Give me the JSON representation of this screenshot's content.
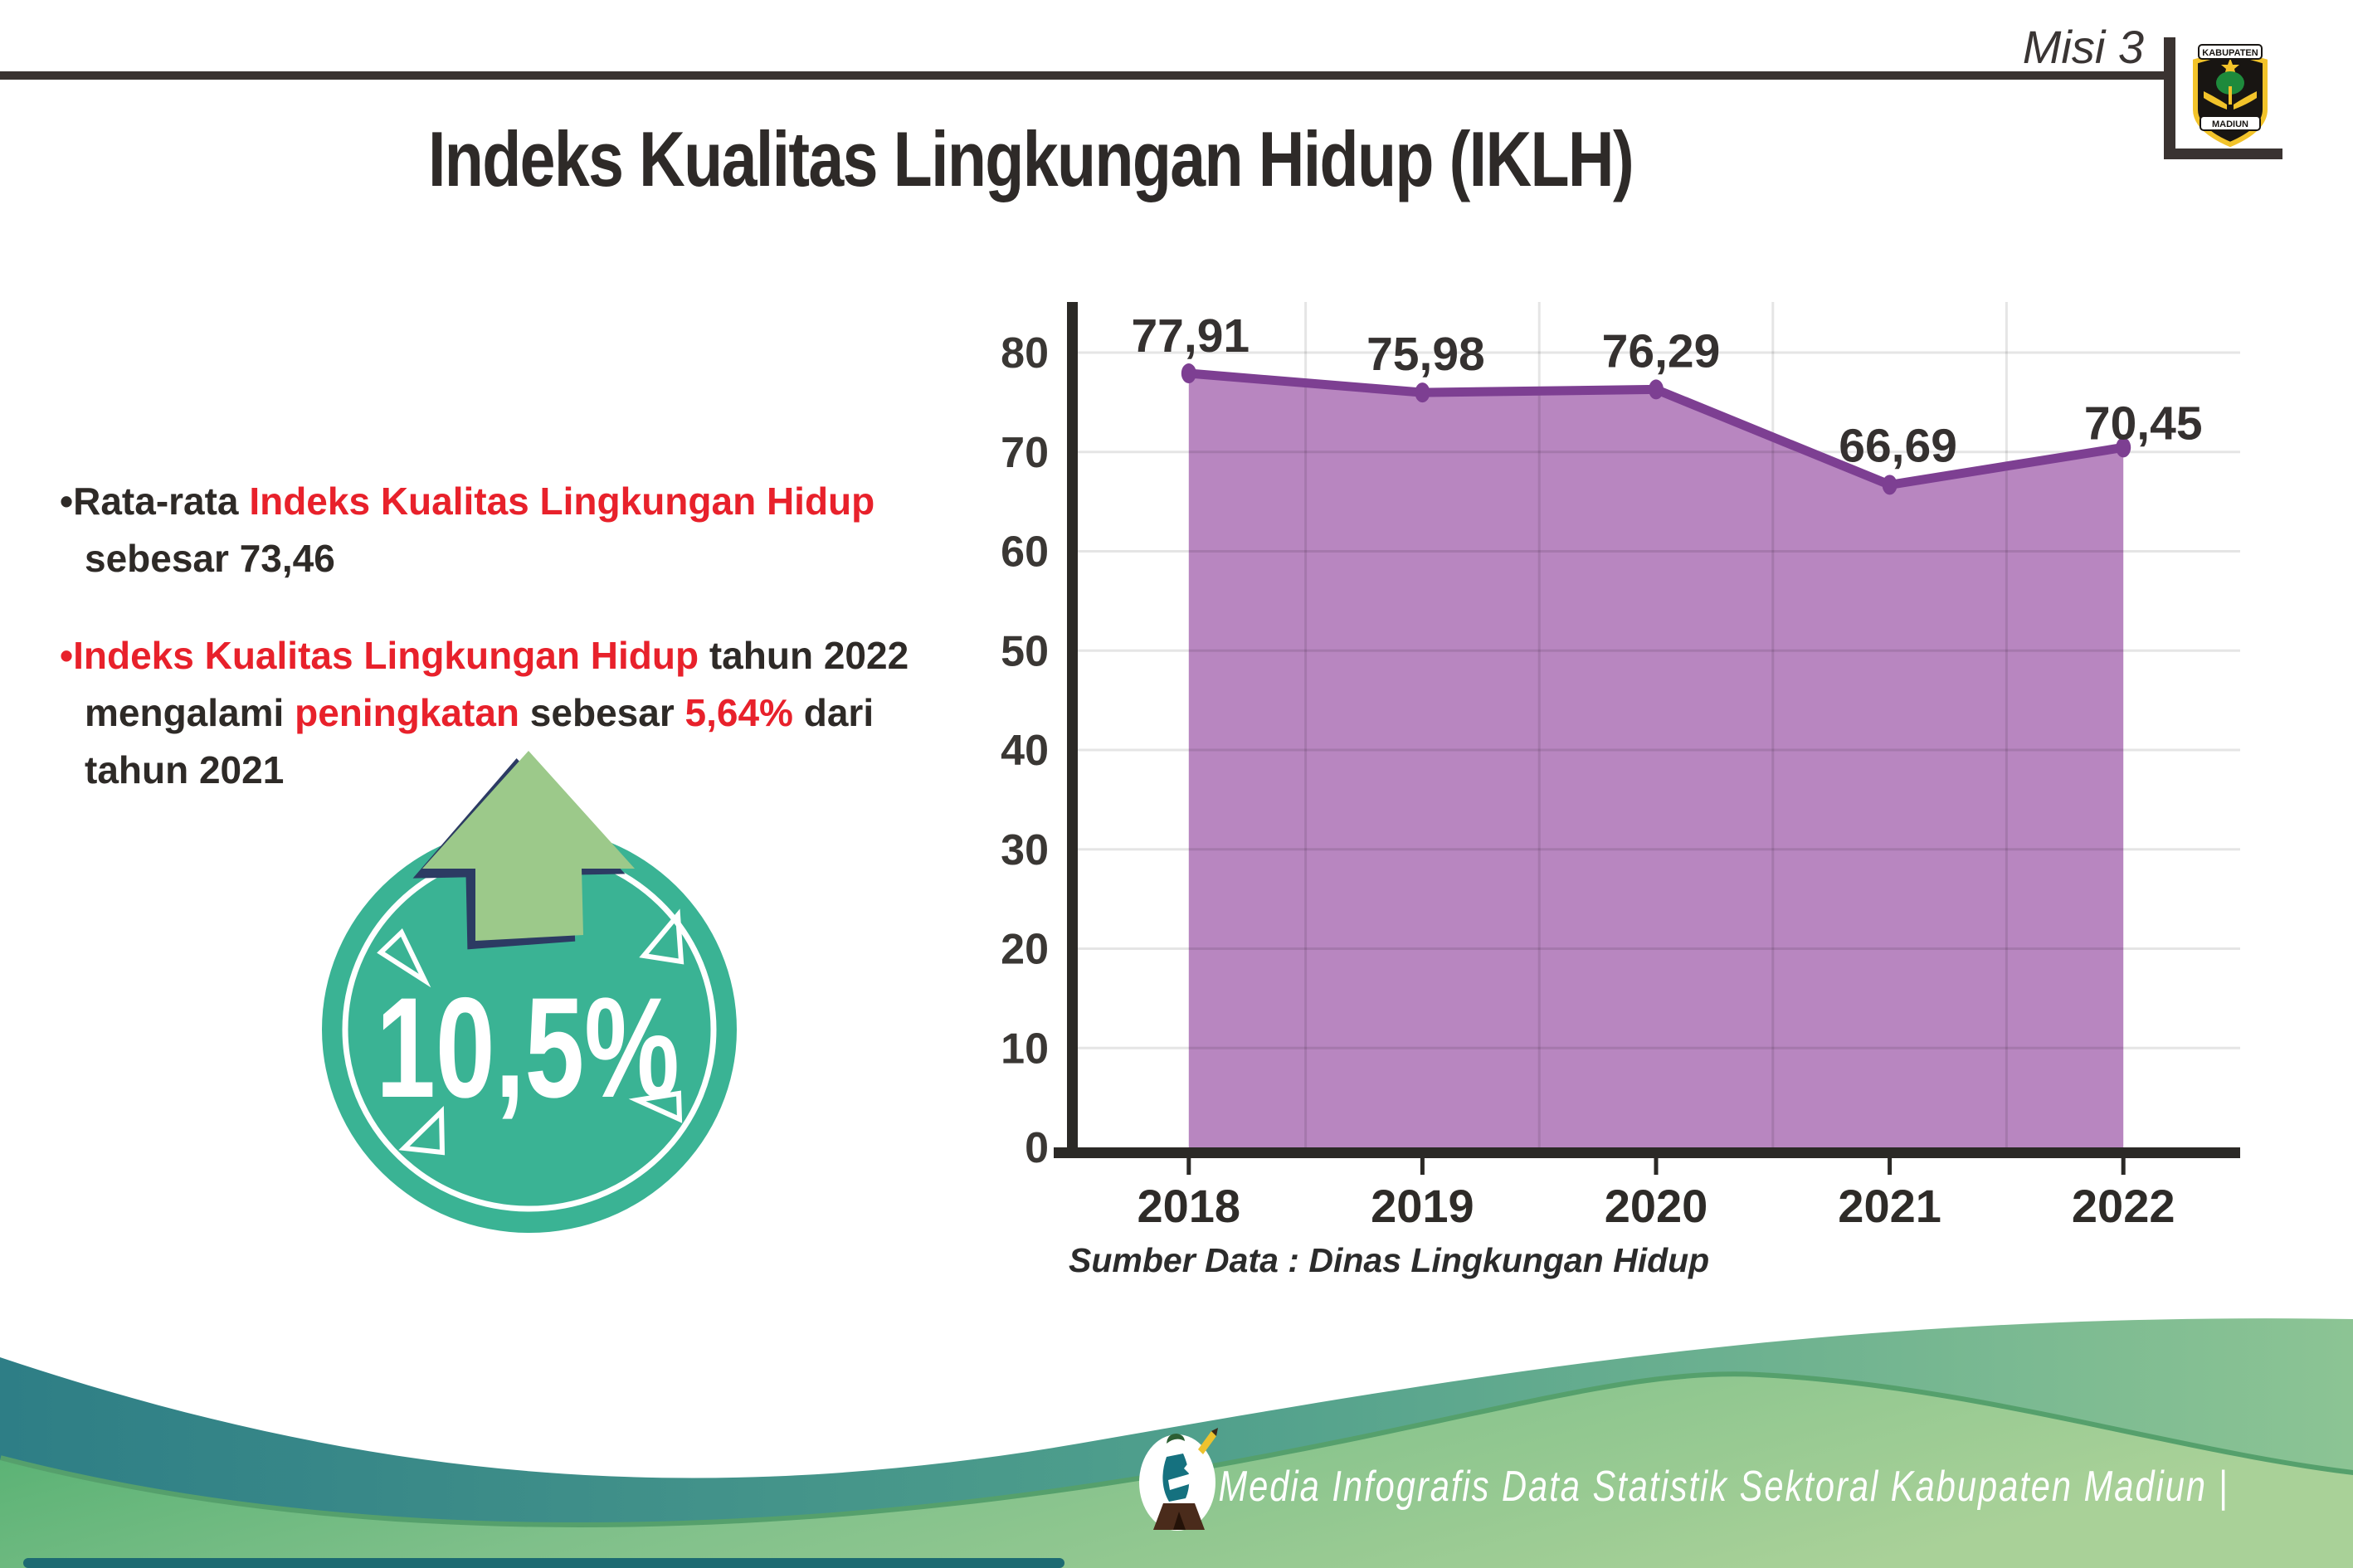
{
  "header": {
    "misi": "Misi 3",
    "title": "Indeks Kualitas Lingkungan Hidup (IKLH)",
    "logo_top": "KABUPATEN",
    "logo_bottom": "MADIUN"
  },
  "bullets": [
    {
      "segments": [
        {
          "text": "Rata-rata ",
          "color": "dark"
        },
        {
          "text": "Indeks Kualitas Lingkungan Hidup",
          "color": "red"
        },
        {
          "text": " \nsebesar 73,46",
          "color": "dark"
        }
      ]
    },
    {
      "segments": [
        {
          "text": "Indeks Kualitas Lingkungan Hidup",
          "color": "red"
        },
        {
          "text": " tahun 2022 \nmengalami ",
          "color": "dark"
        },
        {
          "text": "peningkatan",
          "color": "red"
        },
        {
          "text": " sebesar ",
          "color": "dark"
        },
        {
          "text": "5,64%",
          "color": "red"
        },
        {
          "text": " dari \ntahun 2021",
          "color": "dark"
        }
      ]
    }
  ],
  "badge": {
    "value": "10,5%",
    "direction": "up"
  },
  "chart_data": {
    "type": "area",
    "categories": [
      "2018",
      "2019",
      "2020",
      "2021",
      "2022"
    ],
    "values": [
      77.91,
      75.98,
      76.29,
      66.69,
      70.45
    ],
    "value_labels": [
      "77,91",
      "75,98",
      "76,29",
      "66,69",
      "70,45"
    ],
    "ylim": [
      0,
      80
    ],
    "ytick_step": 10,
    "grid": true,
    "source": "Sumber Data : Dinas Lingkungan Hidup",
    "colors": {
      "area": "#b886c0",
      "line": "#7d3f92",
      "label": "#353130",
      "axis": "#2b2926"
    }
  },
  "footer": {
    "text": "Media Infografis Data Statistik Sektoral Kabupaten Madiun |"
  },
  "colors": {
    "red": "#e8212b",
    "dark_text": "#2e2a27",
    "badge_circle": "#3ab394",
    "arrow_green": "#9cc98a",
    "arrow_outline": "#2c3b63"
  }
}
